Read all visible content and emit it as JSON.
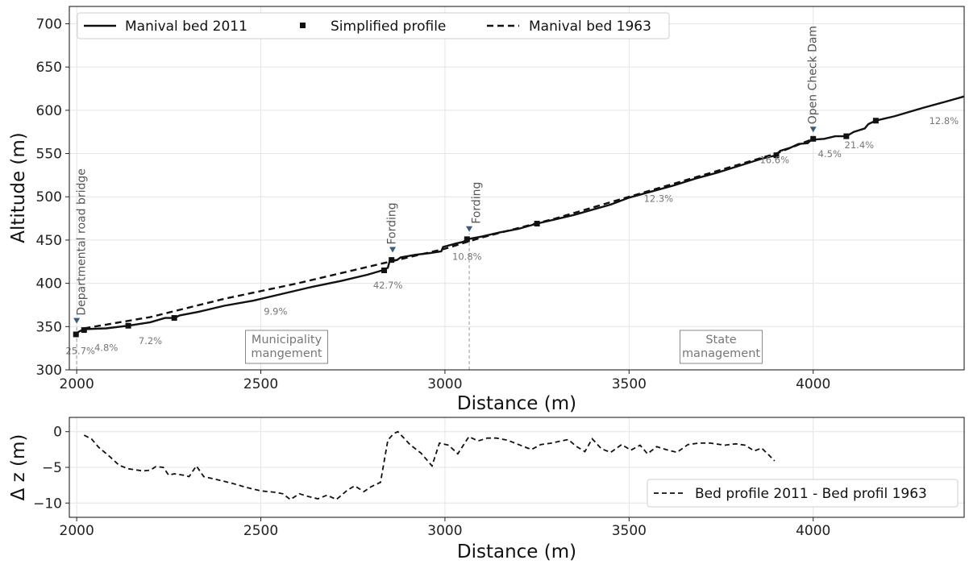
{
  "chart_data": [
    {
      "type": "line",
      "xlabel": "Distance (m)",
      "ylabel": "Altitude (m)",
      "xlim": [
        1980,
        4410
      ],
      "ylim": [
        300,
        720
      ],
      "xticks": [
        2000,
        2500,
        3000,
        3500,
        4000
      ],
      "yticks": [
        300,
        350,
        400,
        450,
        500,
        550,
        600,
        650,
        700
      ],
      "grid": true,
      "legend": {
        "position": "top",
        "entries": [
          "Manival bed 2011",
          "Simplified profile",
          "Manival bed 1963"
        ]
      },
      "series": [
        {
          "name": "Manival bed 2011",
          "style": "solid",
          "points": [
            [
              1998,
              340
            ],
            [
              2005,
              344
            ],
            [
              2020,
              347
            ],
            [
              2080,
              348
            ],
            [
              2140,
              351
            ],
            [
              2200,
              355
            ],
            [
              2240,
              360
            ],
            [
              2265,
              360
            ],
            [
              2280,
              363
            ],
            [
              2330,
              367
            ],
            [
              2400,
              374
            ],
            [
              2480,
              380
            ],
            [
              2560,
              388
            ],
            [
              2640,
              396
            ],
            [
              2720,
              403
            ],
            [
              2790,
              410
            ],
            [
              2830,
              415
            ],
            [
              2845,
              418
            ],
            [
              2850,
              426
            ],
            [
              2870,
              427
            ],
            [
              2880,
              430
            ],
            [
              2920,
              433
            ],
            [
              2960,
              435
            ],
            [
              2990,
              437
            ],
            [
              2995,
              442
            ],
            [
              3030,
              446
            ],
            [
              3050,
              448
            ],
            [
              3060,
              451
            ],
            [
              3100,
              454
            ],
            [
              3150,
              459
            ],
            [
              3200,
              463
            ],
            [
              3250,
              469
            ],
            [
              3300,
              474
            ],
            [
              3350,
              479
            ],
            [
              3400,
              485
            ],
            [
              3450,
              491
            ],
            [
              3500,
              499
            ],
            [
              3560,
              506
            ],
            [
              3620,
              513
            ],
            [
              3680,
              521
            ],
            [
              3740,
              528
            ],
            [
              3800,
              536
            ],
            [
              3860,
              544
            ],
            [
              3900,
              548
            ],
            [
              3910,
              553
            ],
            [
              3940,
              557
            ],
            [
              3960,
              561
            ],
            [
              3985,
              562
            ],
            [
              3995,
              566
            ],
            [
              4030,
              567
            ],
            [
              4060,
              570
            ],
            [
              4090,
              570
            ],
            [
              4110,
              575
            ],
            [
              4140,
              579
            ],
            [
              4150,
              584
            ],
            [
              4170,
              588
            ],
            [
              4220,
              593
            ],
            [
              4300,
              603
            ],
            [
              4360,
              610
            ],
            [
              4410,
              616
            ]
          ]
        },
        {
          "name": "Simplified profile",
          "style": "markers",
          "points": [
            [
              1998,
              341
            ],
            [
              2020,
              346
            ],
            [
              2140,
              351
            ],
            [
              2265,
              360
            ],
            [
              2835,
              415
            ],
            [
              2855,
              427
            ],
            [
              3060,
              451
            ],
            [
              3250,
              469
            ],
            [
              3900,
              548
            ],
            [
              4000,
              567
            ],
            [
              4090,
              570
            ],
            [
              4170,
              588
            ]
          ]
        },
        {
          "name": "Manival bed 1963",
          "style": "dashed",
          "points": [
            [
              2020,
              348
            ],
            [
              2200,
              361
            ],
            [
              2400,
              382
            ],
            [
              2600,
              400
            ],
            [
              2850,
              425
            ],
            [
              3000,
              440
            ],
            [
              3100,
              453
            ],
            [
              3300,
              475
            ],
            [
              3500,
              500
            ],
            [
              3700,
              525
            ],
            [
              3900,
              550
            ],
            [
              3970,
              562
            ],
            [
              4000,
              567
            ]
          ]
        }
      ],
      "slope_labels": [
        {
          "text": "25.7%",
          "x": 2010,
          "y": 318
        },
        {
          "text": "4.8%",
          "x": 2080,
          "y": 322
        },
        {
          "text": "7.2%",
          "x": 2200,
          "y": 330
        },
        {
          "text": "9.9%",
          "x": 2540,
          "y": 364
        },
        {
          "text": "42.7%",
          "x": 2845,
          "y": 394
        },
        {
          "text": "10.8%",
          "x": 3060,
          "y": 427
        },
        {
          "text": "12.3%",
          "x": 3580,
          "y": 494
        },
        {
          "text": "16.6%",
          "x": 3895,
          "y": 539
        },
        {
          "text": "4.5%",
          "x": 4045,
          "y": 546
        },
        {
          "text": "21.4%",
          "x": 4125,
          "y": 556
        },
        {
          "text": "12.8%",
          "x": 4355,
          "y": 584
        }
      ],
      "structures": [
        {
          "text": "Departmental road bridge",
          "x": 2000,
          "y": 346,
          "text_x": 2012
        },
        {
          "text": "Fording",
          "x": 2858,
          "y": 428,
          "text_x": 2855
        },
        {
          "text": "Fording",
          "x": 3066,
          "y": 452,
          "text_x": 3085
        },
        {
          "text": "Open Check Dam",
          "x": 4000,
          "y": 567,
          "text_x": 3997
        }
      ],
      "management_boxes": [
        {
          "lines": [
            "Municipality",
            "mangement"
          ],
          "x": 2570
        },
        {
          "lines": [
            "State",
            "management"
          ],
          "x": 3750
        }
      ],
      "vertical_refs": [
        2000,
        3066
      ]
    },
    {
      "type": "line",
      "xlabel": "Distance (m)",
      "ylabel": "Δ z (m)",
      "xlim": [
        1980,
        4410
      ],
      "ylim": [
        -12,
        2
      ],
      "xticks": [
        2000,
        2500,
        3000,
        3500,
        4000
      ],
      "yticks": [
        -10,
        -5,
        0
      ],
      "grid": true,
      "legend": {
        "position": "bottom-right",
        "entries": [
          "Bed profile 2011 - Bed profil 1963"
        ]
      },
      "series": [
        {
          "name": "Bed profile 2011 - Bed profil 1963",
          "style": "dashed",
          "points": [
            [
              2020,
              -0.5
            ],
            [
              2040,
              -1.0
            ],
            [
              2060,
              -2.2
            ],
            [
              2090,
              -3.5
            ],
            [
              2115,
              -4.7
            ],
            [
              2140,
              -5.2
            ],
            [
              2180,
              -5.5
            ],
            [
              2200,
              -5.4
            ],
            [
              2215,
              -4.9
            ],
            [
              2235,
              -5.0
            ],
            [
              2250,
              -6.1
            ],
            [
              2265,
              -5.9
            ],
            [
              2290,
              -6.1
            ],
            [
              2305,
              -6.3
            ],
            [
              2325,
              -4.8
            ],
            [
              2345,
              -6.3
            ],
            [
              2380,
              -6.7
            ],
            [
              2420,
              -7.2
            ],
            [
              2460,
              -7.8
            ],
            [
              2500,
              -8.3
            ],
            [
              2540,
              -8.5
            ],
            [
              2560,
              -8.7
            ],
            [
              2580,
              -9.5
            ],
            [
              2605,
              -8.7
            ],
            [
              2630,
              -9.1
            ],
            [
              2655,
              -9.4
            ],
            [
              2680,
              -8.9
            ],
            [
              2705,
              -9.5
            ],
            [
              2735,
              -8.2
            ],
            [
              2755,
              -7.6
            ],
            [
              2780,
              -8.4
            ],
            [
              2800,
              -7.7
            ],
            [
              2825,
              -7.1
            ],
            [
              2845,
              -1.2
            ],
            [
              2860,
              -0.3
            ],
            [
              2872,
              0.0
            ],
            [
              2885,
              -0.7
            ],
            [
              2905,
              -1.8
            ],
            [
              2935,
              -3.0
            ],
            [
              2965,
              -4.8
            ],
            [
              2985,
              -1.6
            ],
            [
              3010,
              -1.9
            ],
            [
              3035,
              -3.1
            ],
            [
              3065,
              -0.7
            ],
            [
              3090,
              -1.3
            ],
            [
              3115,
              -0.9
            ],
            [
              3140,
              -0.9
            ],
            [
              3170,
              -1.2
            ],
            [
              3200,
              -1.8
            ],
            [
              3235,
              -2.5
            ],
            [
              3260,
              -1.8
            ],
            [
              3290,
              -1.6
            ],
            [
              3315,
              -1.3
            ],
            [
              3335,
              -1.1
            ],
            [
              3355,
              -2.0
            ],
            [
              3380,
              -2.8
            ],
            [
              3400,
              -1.0
            ],
            [
              3425,
              -2.4
            ],
            [
              3450,
              -2.9
            ],
            [
              3480,
              -1.8
            ],
            [
              3505,
              -2.6
            ],
            [
              3530,
              -1.9
            ],
            [
              3550,
              -3.1
            ],
            [
              3575,
              -2.1
            ],
            [
              3600,
              -2.5
            ],
            [
              3630,
              -2.9
            ],
            [
              3660,
              -1.8
            ],
            [
              3690,
              -1.6
            ],
            [
              3720,
              -1.6
            ],
            [
              3760,
              -1.9
            ],
            [
              3790,
              -1.7
            ],
            [
              3815,
              -1.9
            ],
            [
              3840,
              -2.7
            ],
            [
              3860,
              -2.3
            ],
            [
              3880,
              -3.3
            ],
            [
              3895,
              -4.1
            ]
          ]
        }
      ]
    }
  ]
}
